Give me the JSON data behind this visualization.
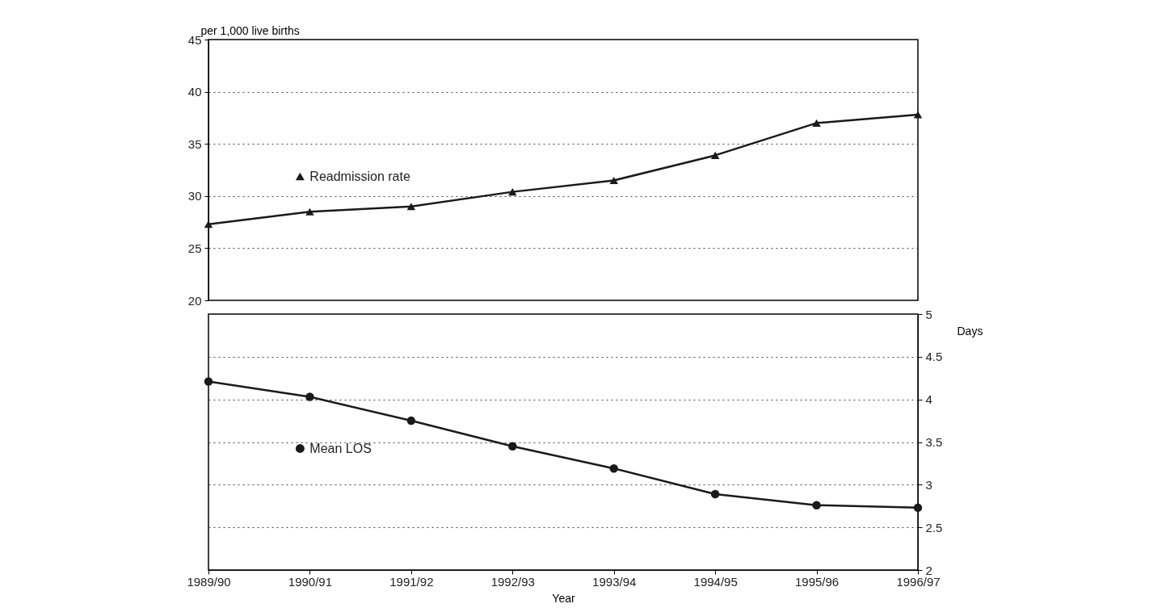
{
  "chart_data": [
    {
      "type": "line",
      "ylabel": "per 1,000 live births",
      "categories": [
        "1989/90",
        "1990/91",
        "1991/92",
        "1992/93",
        "1993/94",
        "1994/95",
        "1995/96",
        "1996/97"
      ],
      "series": [
        {
          "name": "Readmission rate",
          "color": "#1a1a1a",
          "values": [
            27.3,
            28.5,
            29.0,
            30.4,
            31.5,
            33.9,
            37.0,
            37.8
          ]
        }
      ],
      "ylim": [
        20,
        45
      ],
      "yticks": [
        20,
        25,
        30,
        35,
        40,
        45
      ],
      "grid": "y",
      "line_style": "solid",
      "marker": "triangle",
      "legend": "left",
      "tick_labels": "y"
    },
    {
      "type": "line",
      "xlabel": "Year",
      "y2label": "Days",
      "categories": [
        "1989/90",
        "1990/91",
        "1991/92",
        "1992/93",
        "1993/94",
        "1994/95",
        "1995/96",
        "1996/97"
      ],
      "series": [
        {
          "name": "Mean LOS",
          "color": "#1a1a1a",
          "axis": "y2",
          "values": [
            4.21,
            4.03,
            3.75,
            3.45,
            3.19,
            2.89,
            2.76,
            2.73
          ]
        }
      ],
      "y2lim": [
        2,
        5
      ],
      "y2ticks": [
        2,
        2.5,
        3,
        3.5,
        4,
        4.5,
        5
      ],
      "grid": "y",
      "line_style": "solid",
      "marker": "circle",
      "legend": "left"
    }
  ]
}
